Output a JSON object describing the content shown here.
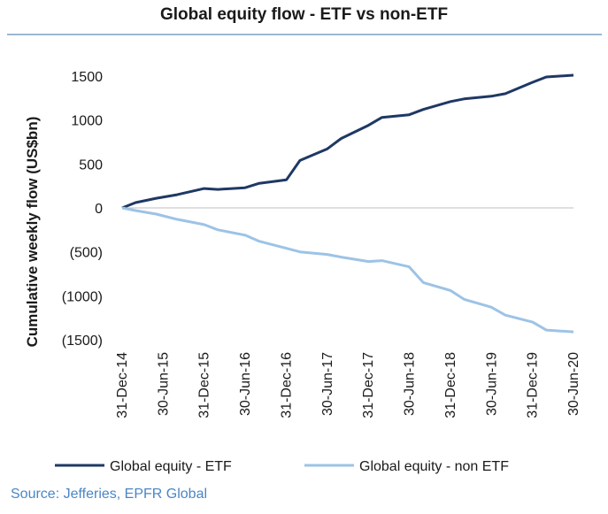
{
  "chart_data": {
    "type": "line",
    "title": "Global equity flow - ETF vs non-ETF",
    "ylabel": "Cumulative weekly flow (US$bn)",
    "xlabel": "",
    "ylim": [
      -1500,
      1500
    ],
    "yticks": [
      1500,
      1000,
      500,
      0,
      -500,
      -1000,
      -1500
    ],
    "ytick_labels": [
      "1500",
      "1000",
      "500",
      "0",
      "(500)",
      "(1000)",
      "(1500)"
    ],
    "xlim": [
      "2014-12-31",
      "2020-06-30"
    ],
    "xtick_labels": [
      "31-Dec-14",
      "30-Jun-15",
      "31-Dec-15",
      "30-Jun-16",
      "31-Dec-16",
      "30-Jun-17",
      "31-Dec-17",
      "30-Jun-18",
      "31-Dec-18",
      "30-Jun-19",
      "31-Dec-19",
      "30-Jun-20"
    ],
    "legend_position": "bottom",
    "grid": false,
    "series": [
      {
        "name": "Global equity - ETF",
        "color": "#1f3864",
        "x": [
          "2014-12-31",
          "2015-03-01",
          "2015-06-01",
          "2015-09-01",
          "2015-12-31",
          "2016-03-01",
          "2016-06-30",
          "2016-09-01",
          "2016-12-31",
          "2017-03-01",
          "2017-06-30",
          "2017-09-01",
          "2017-12-31",
          "2018-03-01",
          "2018-06-30",
          "2018-09-01",
          "2018-12-31",
          "2019-03-01",
          "2019-06-30",
          "2019-09-01",
          "2019-12-31",
          "2020-03-01",
          "2020-06-30"
        ],
        "values": [
          0,
          60,
          110,
          150,
          220,
          210,
          230,
          280,
          320,
          540,
          670,
          790,
          940,
          1030,
          1060,
          1120,
          1210,
          1240,
          1270,
          1300,
          1430,
          1490,
          1510
        ]
      },
      {
        "name": "Global equity - non ETF",
        "color": "#9dc3e6",
        "x": [
          "2014-12-31",
          "2015-03-01",
          "2015-06-01",
          "2015-09-01",
          "2015-12-31",
          "2016-03-01",
          "2016-06-30",
          "2016-09-01",
          "2016-12-31",
          "2017-03-01",
          "2017-06-30",
          "2017-09-01",
          "2017-12-31",
          "2018-03-01",
          "2018-06-30",
          "2018-09-01",
          "2018-12-31",
          "2019-03-01",
          "2019-06-30",
          "2019-09-01",
          "2019-12-31",
          "2020-03-01",
          "2020-06-30"
        ],
        "values": [
          0,
          -30,
          -70,
          -130,
          -190,
          -250,
          -310,
          -380,
          -460,
          -500,
          -530,
          -560,
          -610,
          -600,
          -670,
          -850,
          -940,
          -1040,
          -1130,
          -1220,
          -1300,
          -1390,
          -1410
        ]
      }
    ]
  },
  "source": "Source: Jefferies, EPFR Global"
}
